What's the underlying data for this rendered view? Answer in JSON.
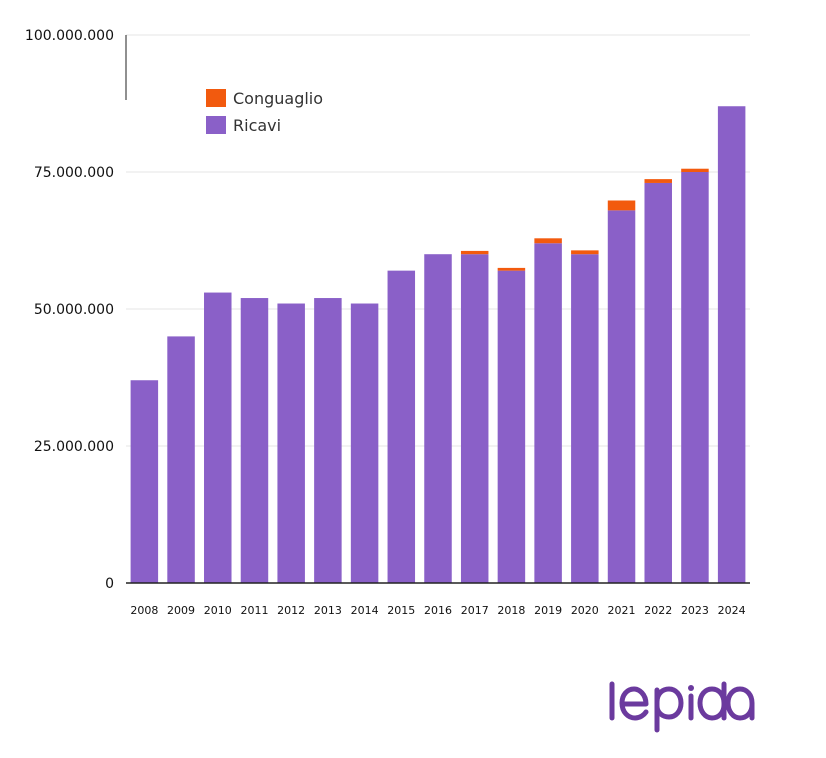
{
  "chart_data": {
    "type": "bar",
    "stacked": true,
    "categories": [
      "2008",
      "2009",
      "2010",
      "2011",
      "2012",
      "2013",
      "2014",
      "2015",
      "2016",
      "2017",
      "2018",
      "2019",
      "2020",
      "2021",
      "2022",
      "2023",
      "2024"
    ],
    "series": [
      {
        "name": "Ricavi",
        "color": "#8a60c8",
        "values": [
          37000000,
          45000000,
          53000000,
          52000000,
          51000000,
          52000000,
          51000000,
          57000000,
          60000000,
          60000000,
          57000000,
          62000000,
          60000000,
          68000000,
          73000000,
          75000000,
          87000000
        ]
      },
      {
        "name": "Conguaglio",
        "color": "#f25a0e",
        "values": [
          0,
          0,
          0,
          0,
          0,
          0,
          0,
          0,
          0,
          600000,
          500000,
          900000,
          700000,
          1800000,
          700000,
          600000,
          0
        ]
      }
    ],
    "ylim": [
      0,
      100000000
    ],
    "yticks": [
      0,
      25000000,
      50000000,
      75000000,
      100000000
    ],
    "ytick_labels": [
      "0",
      "25.000.000",
      "50.000.000",
      "75.000.000",
      "100.000.000"
    ],
    "legend_order": [
      "Conguaglio",
      "Ricavi"
    ],
    "legend_position": "top-left",
    "grid": true,
    "xlabel": "",
    "ylabel": ""
  },
  "logo": {
    "text": "lepida",
    "color": "#6b3a9e"
  }
}
